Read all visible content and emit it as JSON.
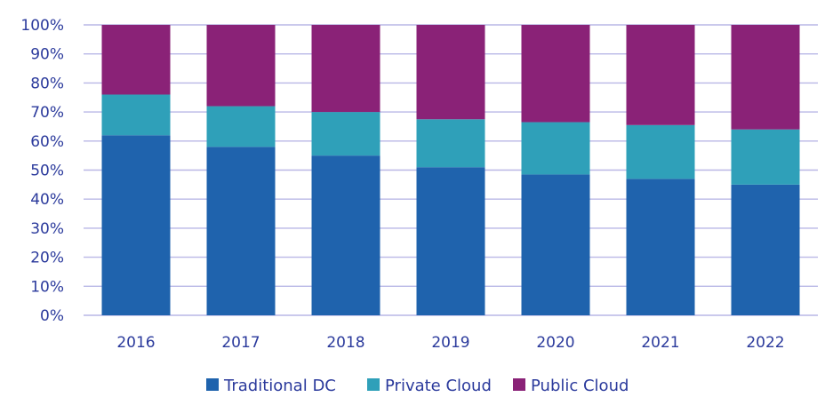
{
  "chart_data": {
    "type": "bar",
    "stacked": true,
    "categories": [
      "2016",
      "2017",
      "2018",
      "2019",
      "2020",
      "2021",
      "2022"
    ],
    "series": [
      {
        "name": "Traditional DC",
        "color": "#1f63ad",
        "values": [
          62,
          58,
          55,
          51,
          48.5,
          47,
          45
        ]
      },
      {
        "name": "Private Cloud",
        "color": "#2fa0b9",
        "values": [
          14,
          14,
          15,
          16.5,
          18,
          18.5,
          19
        ]
      },
      {
        "name": "Public Cloud",
        "color": "#8a2277",
        "values": [
          24,
          28,
          30,
          32.5,
          33.5,
          34.5,
          36
        ]
      }
    ],
    "ylim": [
      0,
      100
    ],
    "yticks": [
      "0%",
      "10%",
      "20%",
      "30%",
      "40%",
      "50%",
      "60%",
      "70%",
      "80%",
      "90%",
      "100%"
    ],
    "grid": true,
    "legend_position": "bottom"
  }
}
